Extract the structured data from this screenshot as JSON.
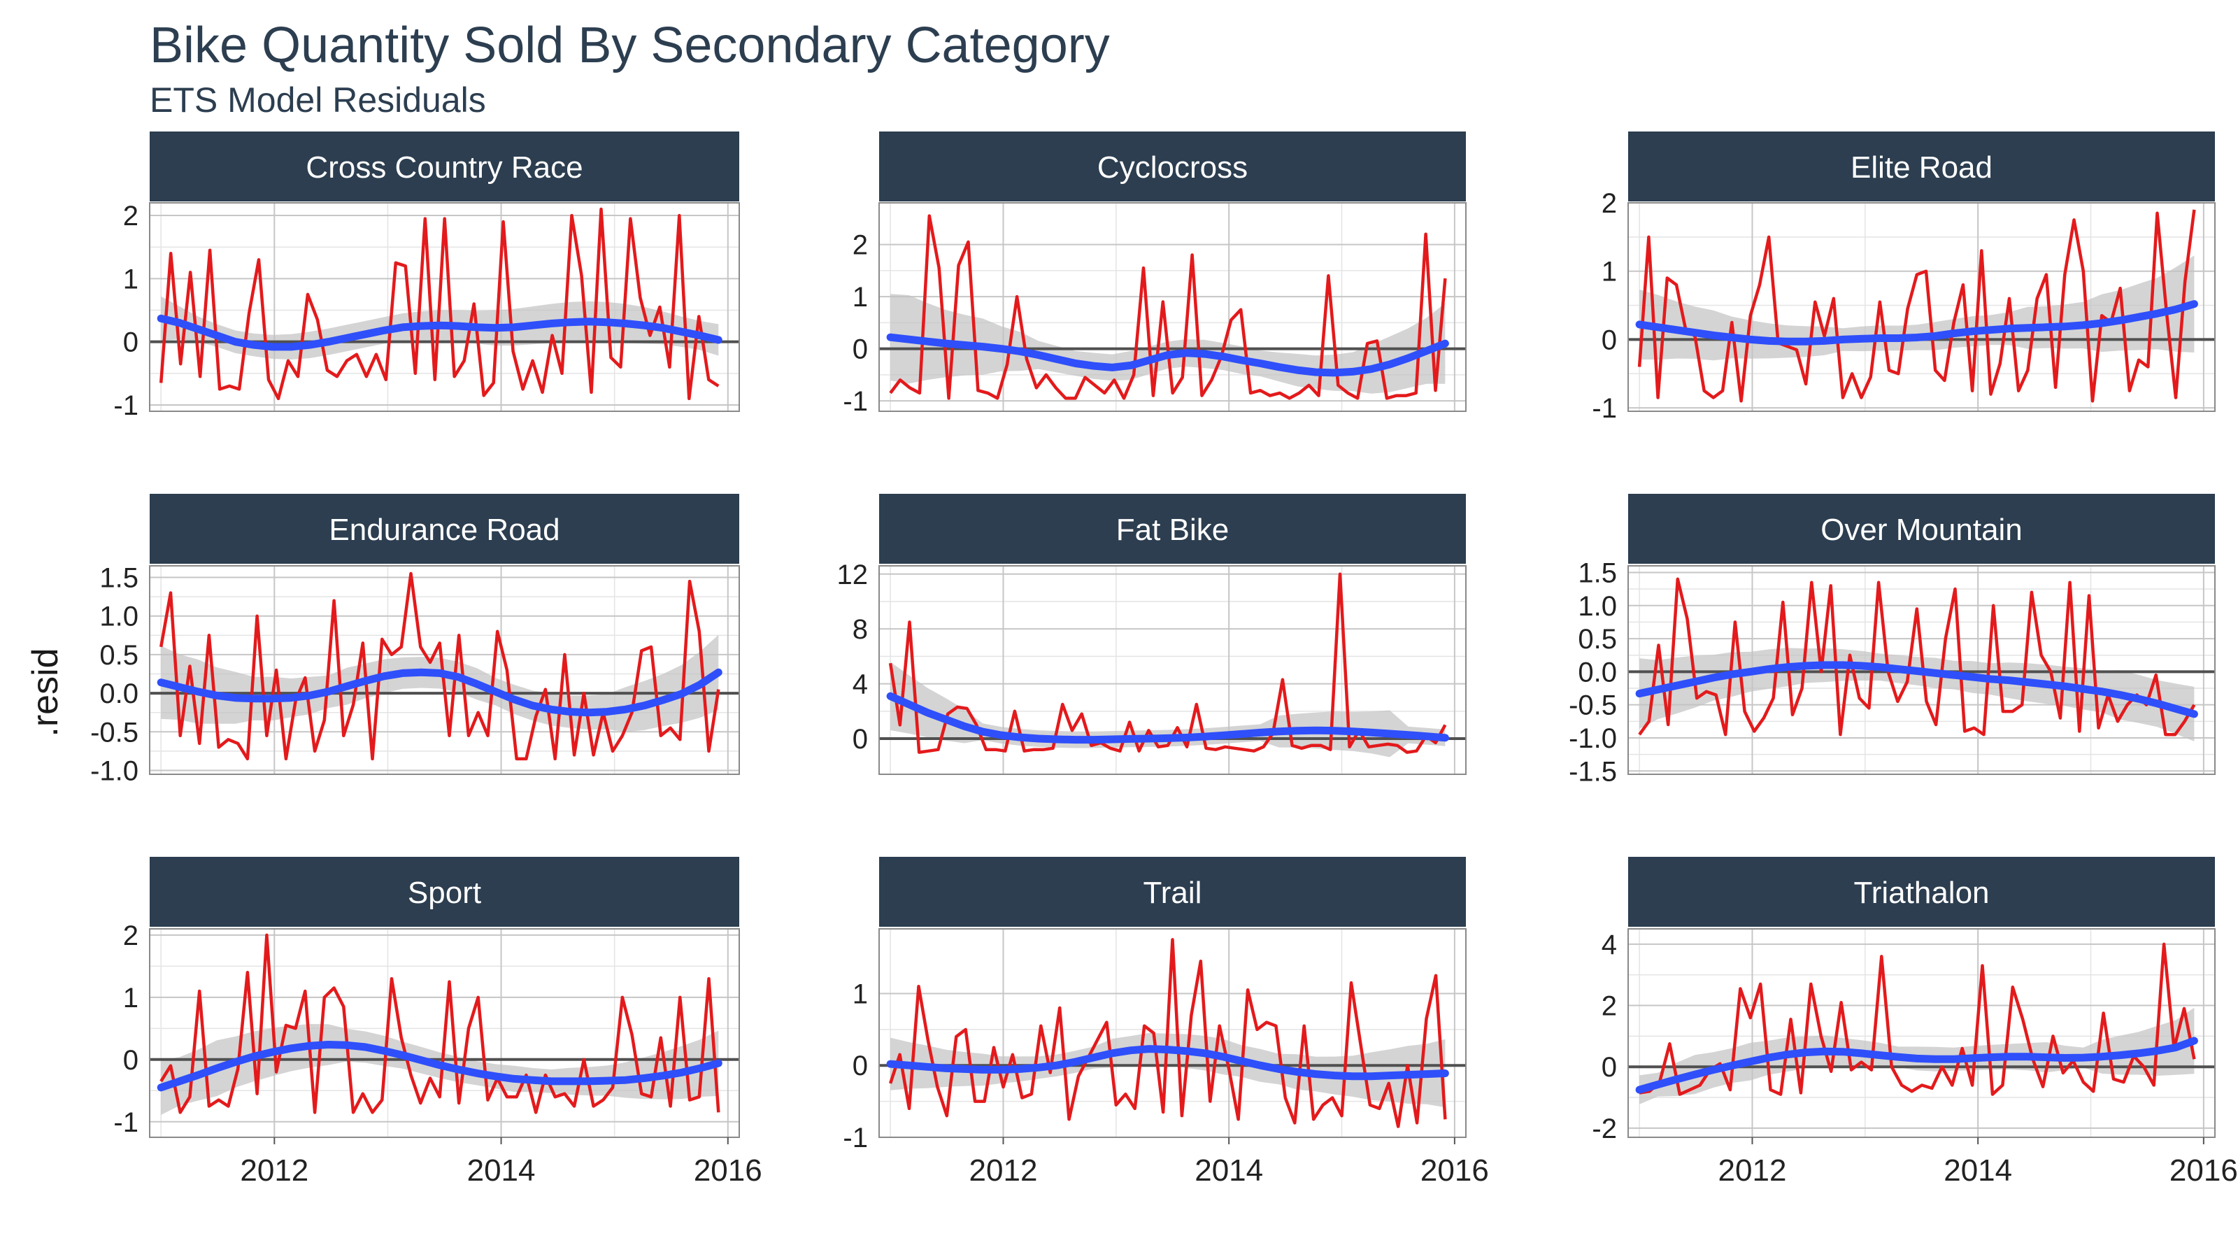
{
  "chart_data": {
    "type": "line",
    "title": "Bike Quantity Sold By Secondary Category",
    "subtitle": "ETS Model Residuals",
    "xlabel": "",
    "ylabel": ".resid",
    "x_start": "2011-01",
    "x_end": "2015-12",
    "xticks": [
      "2012",
      "2014",
      "2016"
    ],
    "xlim": [
      2010.9,
      2016.1
    ],
    "grid": true,
    "colors": {
      "residual_line": "#e31a1c",
      "smooth_line": "#2f4ffa",
      "ribbon": "#c2c2c2",
      "zero_line": "#505050",
      "strip_bg": "#2c3e50",
      "strip_text": "#ffffff",
      "grid_major": "#c6c6c6",
      "grid_minor": "#e4e4e4",
      "panel_border": "#8a8a8a",
      "title": "#2c3e50"
    },
    "panels": [
      {
        "name": "Cross Country Race",
        "ylim": [
          -1.1,
          2.2
        ],
        "yticks": [
          "-1",
          "0",
          "1",
          "2"
        ],
        "ytick_values": [
          -1,
          0,
          1,
          2
        ],
        "residuals": [
          -0.65,
          1.4,
          -0.35,
          1.1,
          -0.55,
          1.45,
          -0.75,
          -0.7,
          -0.75,
          0.45,
          1.3,
          -0.6,
          -0.9,
          -0.3,
          -0.55,
          0.75,
          0.35,
          -0.45,
          -0.55,
          -0.3,
          -0.2,
          -0.55,
          -0.2,
          -0.6,
          1.25,
          1.2,
          -0.5,
          1.95,
          -0.6,
          1.95,
          -0.55,
          -0.3,
          0.6,
          -0.85,
          -0.65,
          1.9,
          -0.15,
          -0.75,
          -0.3,
          -0.8,
          0.1,
          -0.5,
          2.0,
          1.05,
          -0.8,
          2.1,
          -0.25,
          -0.4,
          1.95,
          0.7,
          0.1,
          0.55,
          -0.4,
          2.0,
          -0.9,
          0.4,
          -0.6,
          -0.7
        ],
        "smooth": [
          0.37,
          0.3,
          0.2,
          0.1,
          0.0,
          -0.05,
          -0.08,
          -0.08,
          -0.05,
          0.0,
          0.06,
          0.12,
          0.18,
          0.23,
          0.25,
          0.26,
          0.25,
          0.23,
          0.22,
          0.23,
          0.26,
          0.29,
          0.31,
          0.32,
          0.31,
          0.29,
          0.26,
          0.22,
          0.16,
          0.1,
          0.03
        ],
        "ribbon_halfwidth": [
          0.35,
          0.26,
          0.2,
          0.18,
          0.18,
          0.18,
          0.19,
          0.2,
          0.21,
          0.21,
          0.21,
          0.21,
          0.21,
          0.22,
          0.23,
          0.24,
          0.25,
          0.26,
          0.28,
          0.29,
          0.3,
          0.31,
          0.32,
          0.32,
          0.32,
          0.31,
          0.29,
          0.26,
          0.24,
          0.23,
          0.25
        ]
      },
      {
        "name": "Cyclocross",
        "ylim": [
          -1.2,
          2.8
        ],
        "yticks": [
          "-1",
          "0",
          "1",
          "2"
        ],
        "ytick_values": [
          -1,
          0,
          1,
          2
        ],
        "residuals": [
          -0.85,
          -0.6,
          -0.75,
          -0.85,
          2.55,
          1.55,
          -0.95,
          1.6,
          2.05,
          -0.8,
          -0.85,
          -0.95,
          -0.3,
          1.0,
          -0.2,
          -0.75,
          -0.5,
          -0.75,
          -0.95,
          -0.95,
          -0.55,
          -0.7,
          -0.85,
          -0.6,
          -0.95,
          -0.5,
          1.55,
          -0.9,
          0.9,
          -0.85,
          -0.55,
          1.8,
          -0.9,
          -0.6,
          -0.15,
          0.55,
          0.75,
          -0.85,
          -0.8,
          -0.9,
          -0.85,
          -0.95,
          -0.85,
          -0.7,
          -0.9,
          1.4,
          -0.7,
          -0.85,
          -0.95,
          0.1,
          0.15,
          -0.95,
          -0.9,
          -0.9,
          -0.85,
          2.2,
          -0.8,
          1.35
        ],
        "smooth": [
          0.22,
          0.18,
          0.14,
          0.1,
          0.07,
          0.04,
          0.0,
          -0.05,
          -0.12,
          -0.2,
          -0.28,
          -0.33,
          -0.36,
          -0.32,
          -0.22,
          -0.12,
          -0.08,
          -0.1,
          -0.15,
          -0.22,
          -0.28,
          -0.35,
          -0.41,
          -0.45,
          -0.46,
          -0.44,
          -0.39,
          -0.3,
          -0.18,
          -0.04,
          0.1
        ]
      },
      {
        "name": "Elite Road",
        "ylim": [
          -1.05,
          2.0
        ],
        "yticks": [
          "-1",
          "0",
          "1",
          "2"
        ],
        "ytick_values": [
          -1,
          0,
          1,
          2
        ],
        "residuals": [
          -0.4,
          1.5,
          -0.85,
          0.9,
          0.8,
          0.15,
          0.05,
          -0.75,
          -0.85,
          -0.75,
          0.25,
          -0.9,
          0.35,
          0.8,
          1.5,
          -0.05,
          -0.1,
          -0.15,
          -0.65,
          0.55,
          0.05,
          0.6,
          -0.85,
          -0.5,
          -0.85,
          -0.55,
          0.55,
          -0.45,
          -0.5,
          0.45,
          0.95,
          1.0,
          -0.45,
          -0.6,
          0.25,
          0.8,
          -0.75,
          1.3,
          -0.8,
          -0.35,
          0.6,
          -0.75,
          -0.45,
          0.6,
          0.95,
          -0.7,
          0.95,
          1.75,
          1.0,
          -0.9,
          0.35,
          0.25,
          0.75,
          -0.75,
          -0.3,
          -0.4,
          1.85,
          0.4,
          -0.85,
          0.85,
          1.9
        ],
        "smooth": [
          0.22,
          0.18,
          0.14,
          0.1,
          0.06,
          0.03,
          0.0,
          -0.02,
          -0.03,
          -0.03,
          -0.02,
          0.0,
          0.01,
          0.02,
          0.02,
          0.03,
          0.05,
          0.09,
          0.12,
          0.14,
          0.16,
          0.17,
          0.18,
          0.19,
          0.21,
          0.24,
          0.28,
          0.33,
          0.38,
          0.44,
          0.52
        ]
      },
      {
        "name": "Endurance Road",
        "ylim": [
          -1.05,
          1.65
        ],
        "yticks": [
          "-1.0",
          "-0.5",
          "0.0",
          "0.5",
          "1.0",
          "1.5"
        ],
        "ytick_values": [
          -1.0,
          -0.5,
          0.0,
          0.5,
          1.0,
          1.5
        ],
        "residuals": [
          0.6,
          1.3,
          -0.55,
          0.35,
          -0.65,
          0.75,
          -0.7,
          -0.6,
          -0.65,
          -0.85,
          1.0,
          -0.55,
          0.3,
          -0.85,
          -0.1,
          0.2,
          -0.75,
          -0.35,
          1.2,
          -0.55,
          -0.15,
          0.65,
          -0.85,
          0.7,
          0.5,
          0.6,
          1.55,
          0.6,
          0.4,
          0.65,
          -0.55,
          0.75,
          -0.55,
          -0.25,
          -0.55,
          0.8,
          0.3,
          -0.85,
          -0.85,
          -0.3,
          0.05,
          -0.85,
          0.5,
          -0.8,
          0.0,
          -0.8,
          -0.25,
          -0.75,
          -0.55,
          -0.25,
          0.55,
          0.6,
          -0.55,
          -0.45,
          -0.6,
          1.45,
          0.8,
          -0.75,
          0.05
        ],
        "smooth": [
          0.14,
          0.08,
          0.02,
          -0.03,
          -0.06,
          -0.07,
          -0.07,
          -0.06,
          -0.03,
          0.02,
          0.09,
          0.16,
          0.22,
          0.26,
          0.27,
          0.26,
          0.21,
          0.12,
          0.02,
          -0.08,
          -0.16,
          -0.21,
          -0.24,
          -0.25,
          -0.24,
          -0.21,
          -0.16,
          -0.09,
          -0.01,
          0.11,
          0.27
        ]
      },
      {
        "name": "Fat Bike",
        "ylim": [
          -2.6,
          12.6
        ],
        "yticks": [
          "0",
          "4",
          "8",
          "12"
        ],
        "ytick_values": [
          0,
          4,
          8,
          12
        ],
        "residuals": [
          5.5,
          1.0,
          8.5,
          -1.0,
          -0.9,
          -0.8,
          1.8,
          2.3,
          2.2,
          1.0,
          -0.8,
          -0.8,
          -0.9,
          2.0,
          -0.9,
          -0.8,
          -0.8,
          -0.7,
          2.5,
          0.6,
          1.8,
          -0.5,
          -0.3,
          -0.7,
          -0.9,
          1.2,
          -0.9,
          0.6,
          -0.6,
          -0.5,
          0.8,
          -0.6,
          2.5,
          -0.7,
          -0.8,
          -0.6,
          -0.7,
          -0.8,
          -0.9,
          -0.6,
          0.4,
          4.3,
          -0.5,
          -0.7,
          -0.5,
          -0.5,
          -0.8,
          12.0,
          -0.6,
          0.6,
          -0.6,
          -0.5,
          -0.4,
          -0.5,
          -1.0,
          -0.9,
          0.2,
          -0.3,
          1.0
        ],
        "smooth": [
          3.1,
          2.5,
          1.9,
          1.4,
          0.9,
          0.5,
          0.25,
          0.1,
          0.0,
          -0.05,
          -0.08,
          -0.08,
          -0.05,
          -0.02,
          0.0,
          0.03,
          0.08,
          0.15,
          0.24,
          0.34,
          0.44,
          0.52,
          0.58,
          0.6,
          0.58,
          0.52,
          0.45,
          0.36,
          0.27,
          0.17,
          0.06
        ]
      },
      {
        "name": "Over Mountain",
        "ylim": [
          -1.55,
          1.6
        ],
        "yticks": [
          "-1.5",
          "-1.0",
          "-0.5",
          "0.0",
          "0.5",
          "1.0",
          "1.5"
        ],
        "ytick_values": [
          -1.5,
          -1.0,
          -0.5,
          0.0,
          0.5,
          1.0,
          1.5
        ],
        "residuals": [
          -0.95,
          -0.75,
          0.4,
          -0.8,
          1.4,
          0.8,
          -0.4,
          -0.3,
          -0.35,
          -0.95,
          0.75,
          -0.6,
          -0.9,
          -0.7,
          -0.4,
          1.05,
          -0.65,
          -0.25,
          1.35,
          0.0,
          1.3,
          -0.95,
          0.25,
          -0.4,
          -0.55,
          1.35,
          0.0,
          -0.45,
          -0.15,
          0.95,
          -0.45,
          -0.8,
          0.5,
          1.25,
          -0.9,
          -0.85,
          -0.95,
          1.0,
          -0.6,
          -0.6,
          -0.5,
          1.2,
          0.25,
          0.0,
          -0.7,
          1.35,
          -0.9,
          1.15,
          -0.85,
          -0.35,
          -0.75,
          -0.5,
          -0.35,
          -0.5,
          -0.05,
          -0.95,
          -0.95,
          -0.75,
          -0.5
        ],
        "smooth": [
          -0.33,
          -0.27,
          -0.21,
          -0.15,
          -0.09,
          -0.04,
          0.0,
          0.04,
          0.07,
          0.09,
          0.1,
          0.1,
          0.09,
          0.07,
          0.04,
          0.01,
          -0.02,
          -0.05,
          -0.08,
          -0.11,
          -0.13,
          -0.16,
          -0.19,
          -0.22,
          -0.26,
          -0.3,
          -0.35,
          -0.41,
          -0.48,
          -0.56,
          -0.64
        ]
      },
      {
        "name": "Sport",
        "ylim": [
          -1.25,
          2.1
        ],
        "yticks": [
          "-1",
          "0",
          "1",
          "2"
        ],
        "ytick_values": [
          -1,
          0,
          1,
          2
        ],
        "residuals": [
          -0.35,
          -0.1,
          -0.85,
          -0.6,
          1.1,
          -0.75,
          -0.65,
          -0.75,
          -0.15,
          1.4,
          -0.55,
          2.0,
          -0.2,
          0.55,
          0.5,
          1.1,
          -0.85,
          1.0,
          1.15,
          0.85,
          -0.85,
          -0.55,
          -0.85,
          -0.65,
          1.3,
          0.35,
          -0.25,
          -0.7,
          -0.3,
          -0.6,
          1.25,
          -0.7,
          0.5,
          1.0,
          -0.65,
          -0.3,
          -0.6,
          -0.6,
          -0.25,
          -0.85,
          -0.25,
          -0.6,
          -0.55,
          -0.75,
          0.0,
          -0.75,
          -0.65,
          -0.45,
          1.0,
          0.4,
          -0.55,
          -0.6,
          0.35,
          -0.75,
          1.0,
          -0.65,
          -0.6,
          1.3,
          -0.85
        ],
        "smooth": [
          -0.45,
          -0.35,
          -0.25,
          -0.14,
          -0.04,
          0.05,
          0.12,
          0.18,
          0.22,
          0.24,
          0.23,
          0.2,
          0.14,
          0.07,
          -0.01,
          -0.09,
          -0.16,
          -0.22,
          -0.27,
          -0.31,
          -0.33,
          -0.35,
          -0.35,
          -0.35,
          -0.34,
          -0.33,
          -0.3,
          -0.26,
          -0.21,
          -0.14,
          -0.06
        ]
      },
      {
        "name": "Trail",
        "ylim": [
          -1.0,
          1.9
        ],
        "yticks": [
          "-1",
          "0",
          "1"
        ],
        "ytick_values": [
          -1,
          0,
          1
        ],
        "residuals": [
          -0.25,
          0.15,
          -0.6,
          1.1,
          0.35,
          -0.3,
          -0.7,
          0.4,
          0.5,
          -0.5,
          -0.5,
          0.25,
          -0.3,
          0.15,
          -0.45,
          -0.4,
          0.55,
          -0.1,
          0.8,
          -0.75,
          -0.15,
          0.1,
          0.35,
          0.6,
          -0.55,
          -0.4,
          -0.6,
          0.55,
          0.45,
          -0.65,
          1.75,
          -0.7,
          0.7,
          1.45,
          -0.5,
          0.55,
          -0.05,
          -0.75,
          1.05,
          0.5,
          0.6,
          0.55,
          -0.45,
          -0.8,
          0.55,
          -0.75,
          -0.55,
          -0.45,
          -0.7,
          1.15,
          0.3,
          -0.55,
          -0.6,
          -0.25,
          -0.85,
          0.0,
          -0.8,
          0.65,
          1.25,
          -0.75
        ],
        "smooth": [
          0.02,
          0.0,
          -0.02,
          -0.04,
          -0.05,
          -0.06,
          -0.06,
          -0.05,
          -0.03,
          0.0,
          0.05,
          0.11,
          0.17,
          0.21,
          0.23,
          0.22,
          0.2,
          0.17,
          0.12,
          0.06,
          0.0,
          -0.05,
          -0.09,
          -0.12,
          -0.14,
          -0.15,
          -0.15,
          -0.14,
          -0.13,
          -0.12,
          -0.11
        ]
      },
      {
        "name": "Triathalon",
        "ylim": [
          -2.3,
          4.5
        ],
        "yticks": [
          "-2",
          "0",
          "2",
          "4"
        ],
        "ytick_values": [
          -2,
          0,
          2,
          4
        ],
        "residuals": [
          -0.85,
          -0.8,
          -0.5,
          0.75,
          -0.9,
          -0.75,
          -0.6,
          -0.1,
          0.1,
          -0.75,
          2.55,
          1.6,
          2.7,
          -0.75,
          -0.9,
          1.55,
          -0.85,
          2.7,
          1.0,
          -0.15,
          2.1,
          -0.1,
          0.15,
          -0.1,
          3.6,
          0.0,
          -0.6,
          -0.8,
          -0.6,
          -0.7,
          0.0,
          -0.6,
          0.6,
          -0.6,
          3.3,
          -0.9,
          -0.6,
          2.6,
          1.55,
          0.25,
          -0.65,
          1.0,
          -0.2,
          0.2,
          -0.5,
          -0.8,
          1.75,
          -0.4,
          -0.5,
          0.35,
          0.0,
          -0.6,
          4.0,
          0.6,
          1.9,
          0.25
        ],
        "smooth": [
          -0.75,
          -0.58,
          -0.41,
          -0.25,
          -0.1,
          0.04,
          0.17,
          0.3,
          0.4,
          0.47,
          0.5,
          0.49,
          0.44,
          0.38,
          0.32,
          0.27,
          0.25,
          0.25,
          0.28,
          0.31,
          0.33,
          0.33,
          0.31,
          0.29,
          0.3,
          0.33,
          0.38,
          0.44,
          0.52,
          0.63,
          0.85
        ]
      }
    ]
  }
}
